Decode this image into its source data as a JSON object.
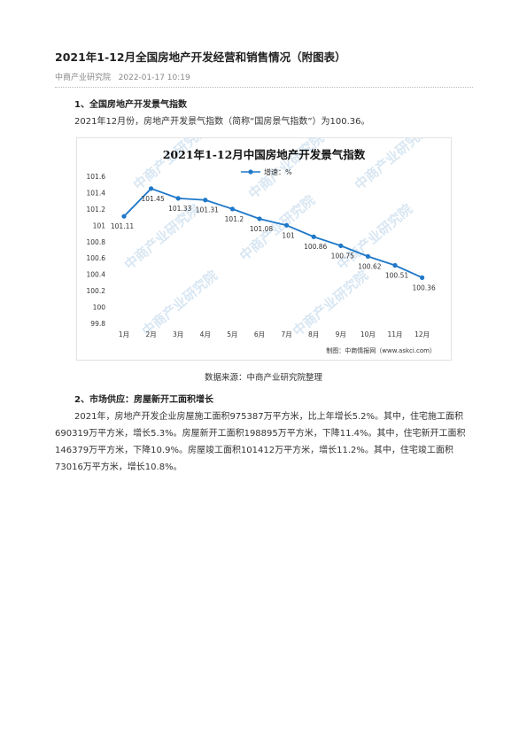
{
  "article": {
    "title": "2021年1-12月全国房地产开发经营和销售情况（附图表）",
    "source": "中商产业研究院",
    "datetime": "2022-01-17 10:19"
  },
  "section1": {
    "heading": "1、全国房地产开发景气指数",
    "paragraph": "2021年12月份，房地产开发景气指数（简称“国房景气指数”）为100.36。"
  },
  "chart_credit": "制图：中商情报网（www.askci.com）",
  "chart_caption": "数据来源：中商产业研究院整理",
  "watermark_text": "中商产业研究院",
  "section2": {
    "heading": "2、市场供应：房屋新开工面积增长",
    "paragraph": "2021年，房地产开发企业房屋施工面积975387万平方米，比上年增长5.2%。其中，住宅施工面积690319万平方米，增长5.3%。房屋新开工面积198895万平方米，下降11.4%。其中，住宅新开工面积146379万平方米，下降10.9%。房屋竣工面积101412万平方米，增长11.2%。其中，住宅竣工面积73016万平方米，增长10.8%。"
  },
  "chart_data": {
    "type": "line",
    "title": "2021年1-12月中国房地产开发景气指数",
    "categories": [
      "1月",
      "2月",
      "3月",
      "4月",
      "5月",
      "6月",
      "7月",
      "8月",
      "9月",
      "10月",
      "11月",
      "12月"
    ],
    "series": [
      {
        "name": "增速：%",
        "values": [
          101.11,
          101.45,
          101.33,
          101.31,
          101.2,
          101.08,
          101,
          100.86,
          100.75,
          100.62,
          100.51,
          100.36
        ],
        "labels": [
          "101.11",
          "101.45",
          "101.33",
          "101.31",
          "101.2",
          "101.08",
          "101",
          "100.86",
          "100.75",
          "100.62",
          "100.51",
          "100.36"
        ]
      }
    ],
    "ylim": [
      99.8,
      101.6
    ],
    "yticks": [
      "99.8",
      "100",
      "100.2",
      "100.4",
      "100.6",
      "100.8",
      "101",
      "101.2",
      "101.4",
      "101.6"
    ],
    "ytick_values": [
      99.8,
      100,
      100.2,
      100.4,
      100.6,
      100.8,
      101,
      101.2,
      101.4,
      101.6
    ],
    "line_color": "#1f78c8",
    "legend_position": "top-center",
    "grid": false
  }
}
